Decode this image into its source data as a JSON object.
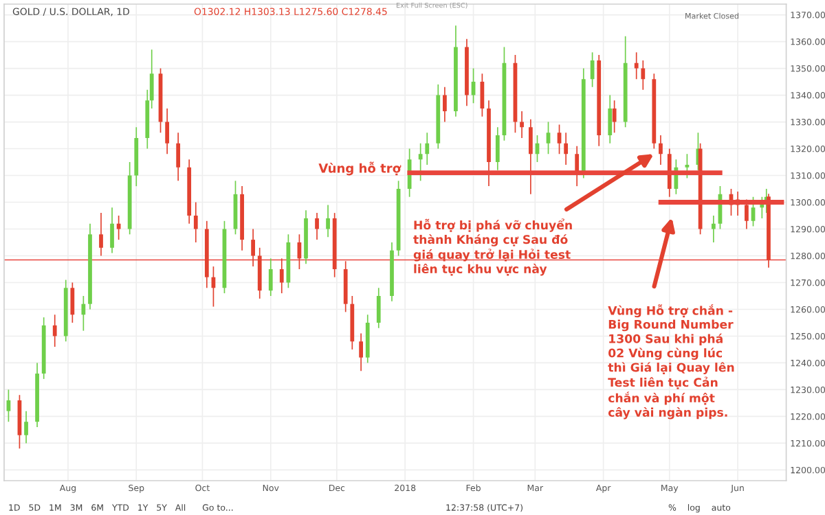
{
  "chart_data": {
    "type": "candlestick",
    "title": "GOLD / U.S. DOLLAR, 1D",
    "series": [
      {
        "x": [
          "2017-07-05",
          "2017-07-10",
          "2017-07-13",
          "2017-07-18",
          "2017-07-21",
          "2017-07-26",
          "2017-07-31",
          "2017-08-03",
          "2017-08-08",
          "2017-08-11",
          "2017-08-16",
          "2017-08-21",
          "2017-08-24",
          "2017-08-29",
          "2017-09-01",
          "2017-09-06",
          "2017-09-08",
          "2017-09-12",
          "2017-09-15",
          "2017-09-20",
          "2017-09-25",
          "2017-09-28",
          "2017-10-03",
          "2017-10-06",
          "2017-10-11",
          "2017-10-16",
          "2017-10-19",
          "2017-10-24",
          "2017-10-27",
          "2017-11-01",
          "2017-11-06",
          "2017-11-09",
          "2017-11-14",
          "2017-11-17",
          "2017-11-22",
          "2017-11-27",
          "2017-11-30",
          "2017-12-05",
          "2017-12-08",
          "2017-12-12",
          "2017-12-15",
          "2017-12-20",
          "2017-12-26",
          "2017-12-29",
          "2018-01-03",
          "2018-01-08",
          "2018-01-11",
          "2018-01-16",
          "2018-01-19",
          "2018-01-24",
          "2018-01-29",
          "2018-02-01",
          "2018-02-05",
          "2018-02-08",
          "2018-02-12",
          "2018-02-15",
          "2018-02-20",
          "2018-02-23",
          "2018-02-27",
          "2018-03-02",
          "2018-03-07",
          "2018-03-12",
          "2018-03-15",
          "2018-03-20",
          "2018-03-23",
          "2018-03-27",
          "2018-03-30",
          "2018-04-04",
          "2018-04-06",
          "2018-04-11",
          "2018-04-16",
          "2018-04-19",
          "2018-04-24",
          "2018-04-27",
          "2018-05-01",
          "2018-05-04",
          "2018-05-09",
          "2018-05-14",
          "2018-05-15",
          "2018-05-21",
          "2018-05-24",
          "2018-05-29",
          "2018-06-01",
          "2018-06-05",
          "2018-06-08",
          "2018-06-12",
          "2018-06-14",
          "2018-06-15"
        ],
        "ohlc": [
          [
            1222,
            1230,
            1218,
            1226
          ],
          [
            1226,
            1228,
            1208,
            1213
          ],
          [
            1213,
            1222,
            1210,
            1218
          ],
          [
            1218,
            1240,
            1216,
            1236
          ],
          [
            1236,
            1257,
            1234,
            1254
          ],
          [
            1254,
            1258,
            1246,
            1250
          ],
          [
            1250,
            1271,
            1248,
            1268
          ],
          [
            1268,
            1270,
            1255,
            1258
          ],
          [
            1258,
            1265,
            1252,
            1262
          ],
          [
            1262,
            1292,
            1260,
            1288
          ],
          [
            1288,
            1296,
            1280,
            1283
          ],
          [
            1283,
            1298,
            1281,
            1292
          ],
          [
            1292,
            1295,
            1286,
            1290
          ],
          [
            1290,
            1315,
            1288,
            1310
          ],
          [
            1310,
            1328,
            1306,
            1324
          ],
          [
            1324,
            1342,
            1320,
            1338
          ],
          [
            1338,
            1357,
            1335,
            1348
          ],
          [
            1348,
            1350,
            1326,
            1330
          ],
          [
            1330,
            1335,
            1318,
            1322
          ],
          [
            1322,
            1326,
            1308,
            1313
          ],
          [
            1313,
            1316,
            1292,
            1295
          ],
          [
            1295,
            1300,
            1285,
            1290
          ],
          [
            1290,
            1293,
            1268,
            1272
          ],
          [
            1272,
            1276,
            1261,
            1268
          ],
          [
            1268,
            1293,
            1266,
            1290
          ],
          [
            1290,
            1308,
            1288,
            1303
          ],
          [
            1303,
            1306,
            1282,
            1286
          ],
          [
            1286,
            1290,
            1276,
            1280
          ],
          [
            1280,
            1283,
            1264,
            1267
          ],
          [
            1267,
            1279,
            1265,
            1275
          ],
          [
            1275,
            1279,
            1266,
            1270
          ],
          [
            1270,
            1288,
            1268,
            1285
          ],
          [
            1285,
            1288,
            1275,
            1279
          ],
          [
            1279,
            1297,
            1277,
            1294
          ],
          [
            1294,
            1296,
            1286,
            1290
          ],
          [
            1290,
            1299,
            1287,
            1294
          ],
          [
            1294,
            1296,
            1272,
            1275
          ],
          [
            1275,
            1278,
            1259,
            1262
          ],
          [
            1262,
            1265,
            1245,
            1248
          ],
          [
            1248,
            1251,
            1237,
            1242
          ],
          [
            1242,
            1258,
            1240,
            1255
          ],
          [
            1255,
            1268,
            1253,
            1265
          ],
          [
            1265,
            1285,
            1263,
            1282
          ],
          [
            1282,
            1308,
            1280,
            1305
          ],
          [
            1305,
            1320,
            1302,
            1316
          ],
          [
            1316,
            1322,
            1308,
            1318
          ],
          [
            1318,
            1326,
            1314,
            1322
          ],
          [
            1322,
            1344,
            1320,
            1340
          ],
          [
            1340,
            1343,
            1330,
            1334
          ],
          [
            1334,
            1366,
            1332,
            1358
          ],
          [
            1358,
            1361,
            1336,
            1340
          ],
          [
            1340,
            1350,
            1337,
            1345
          ],
          [
            1345,
            1348,
            1332,
            1335
          ],
          [
            1335,
            1338,
            1306,
            1315
          ],
          [
            1315,
            1328,
            1312,
            1325
          ],
          [
            1325,
            1358,
            1323,
            1352
          ],
          [
            1352,
            1355,
            1326,
            1330
          ],
          [
            1330,
            1334,
            1324,
            1328
          ],
          [
            1328,
            1331,
            1303,
            1318
          ],
          [
            1318,
            1325,
            1315,
            1322
          ],
          [
            1322,
            1330,
            1318,
            1326
          ],
          [
            1326,
            1329,
            1318,
            1322
          ],
          [
            1322,
            1326,
            1314,
            1318
          ],
          [
            1318,
            1321,
            1306,
            1311
          ],
          [
            1311,
            1350,
            1309,
            1346
          ],
          [
            1346,
            1356,
            1343,
            1353
          ],
          [
            1353,
            1355,
            1321,
            1325
          ],
          [
            1325,
            1340,
            1322,
            1335
          ],
          [
            1335,
            1338,
            1326,
            1330
          ],
          [
            1330,
            1362,
            1328,
            1352
          ],
          [
            1352,
            1356,
            1346,
            1350
          ],
          [
            1350,
            1353,
            1342,
            1346
          ],
          [
            1346,
            1348,
            1320,
            1322
          ],
          [
            1322,
            1325,
            1314,
            1318
          ],
          [
            1318,
            1320,
            1302,
            1305
          ],
          [
            1305,
            1316,
            1303,
            1313
          ],
          [
            1313,
            1318,
            1309,
            1314
          ],
          [
            1314,
            1326,
            1312,
            1320
          ],
          [
            1320,
            1322,
            1288,
            1290
          ],
          [
            1290,
            1295,
            1285,
            1292
          ],
          [
            1292,
            1306,
            1290,
            1303
          ],
          [
            1303,
            1305,
            1295,
            1299
          ],
          [
            1301,
            1304,
            1295,
            1299
          ],
          [
            1299,
            1301,
            1290,
            1293
          ],
          [
            1293,
            1302,
            1291,
            1298
          ],
          [
            1298,
            1302,
            1294,
            1300
          ],
          [
            1300,
            1305,
            1296,
            1302
          ],
          [
            1302.12,
            1303.13,
            1275.6,
            1278.45
          ]
        ],
        "colors": [
          "#6fcf4a",
          "#e2412f",
          "#6fcf4a",
          "#6fcf4a",
          "#6fcf4a",
          "#e2412f",
          "#6fcf4a",
          "#e2412f",
          "#6fcf4a",
          "#6fcf4a",
          "#e2412f",
          "#6fcf4a",
          "#e2412f",
          "#6fcf4a",
          "#6fcf4a",
          "#6fcf4a",
          "#6fcf4a",
          "#e2412f",
          "#e2412f",
          "#e2412f",
          "#e2412f",
          "#e2412f",
          "#e2412f",
          "#e2412f",
          "#6fcf4a",
          "#6fcf4a",
          "#e2412f",
          "#e2412f",
          "#e2412f",
          "#6fcf4a",
          "#e2412f",
          "#6fcf4a",
          "#e2412f",
          "#6fcf4a",
          "#e2412f",
          "#6fcf4a",
          "#e2412f",
          "#e2412f",
          "#e2412f",
          "#e2412f",
          "#6fcf4a",
          "#6fcf4a",
          "#6fcf4a",
          "#6fcf4a",
          "#6fcf4a",
          "#6fcf4a",
          "#6fcf4a",
          "#6fcf4a",
          "#e2412f",
          "#6fcf4a",
          "#e2412f",
          "#6fcf4a",
          "#e2412f",
          "#e2412f",
          "#6fcf4a",
          "#6fcf4a",
          "#e2412f",
          "#e2412f",
          "#e2412f",
          "#6fcf4a",
          "#6fcf4a",
          "#e2412f",
          "#e2412f",
          "#e2412f",
          "#6fcf4a",
          "#6fcf4a",
          "#e2412f",
          "#6fcf4a",
          "#e2412f",
          "#6fcf4a",
          "#e2412f",
          "#e2412f",
          "#e2412f",
          "#e2412f",
          "#e2412f",
          "#6fcf4a",
          "#6fcf4a",
          "#6fcf4a",
          "#e2412f",
          "#6fcf4a",
          "#6fcf4a",
          "#e2412f",
          "#e2412f",
          "#e2412f",
          "#6fcf4a",
          "#6fcf4a",
          "#6fcf4a",
          "#e2412f"
        ]
      },
      {
        "type": "line",
        "color": "#e8453c",
        "x": [
          "2018-01-02",
          "2018-05-25"
        ],
        "values": [
          1311,
          1311
        ]
      },
      {
        "type": "line",
        "color": "#e8453c",
        "x": [
          "2018-04-26",
          "2018-06-22"
        ],
        "values": [
          1300,
          1300
        ]
      }
    ],
    "ref_lines": [
      {
        "axis": "y",
        "value": 1278.45,
        "color": "#e8453c"
      }
    ],
    "annotations": [
      "O1302.12 H1303.13 L1275.60 C1278.45",
      "Vùng hỗ trợ",
      "Hỗ trợ bị phá vỡ chuyển\nthành Kháng cự Sau đó\ngiá quay trở lại Hỏi test\nliên tục khu vực này",
      "Vùng Hỗ trợ chắn -\nBig Round Number\n1300 Sau khi phá\n02 Vùng cùng lúc\nthì Giá lại Quay lên\nTest liên tục Cản\nchắn và phí một\ncây vài ngàn pips.",
      "Market Closed",
      "Exit Full Screen (ESC)",
      "1D   5D   1M   3M   6M   YTD   1Y   5Y   All      Go to...",
      "12:37:58 (UTC+7)",
      "%    log    auto"
    ],
    "xlim": [
      "2017-07-03",
      "2018-06-23"
    ],
    "xticks": [
      {
        "value": "2017-08-01",
        "label": "Aug"
      },
      {
        "value": "2017-09-01",
        "label": "Sep"
      },
      {
        "value": "2017-10-01",
        "label": "Oct"
      },
      {
        "value": "2017-11-01",
        "label": "Nov"
      },
      {
        "value": "2017-12-01",
        "label": "Dec"
      },
      {
        "value": "2018-01-01",
        "label": "2018"
      },
      {
        "value": "2018-02-01",
        "label": "Feb"
      },
      {
        "value": "2018-03-01",
        "label": "Mar"
      },
      {
        "value": "2018-04-01",
        "label": "Apr"
      },
      {
        "value": "2018-05-01",
        "label": "May"
      },
      {
        "value": "2018-06-01",
        "label": "Jun"
      }
    ],
    "ylim": [
      1196,
      1374
    ],
    "yticks": [
      {
        "value": 1200,
        "label": "1200.00"
      },
      {
        "value": 1210,
        "label": "1210.00"
      },
      {
        "value": 1220,
        "label": "1220.00"
      },
      {
        "value": 1230,
        "label": "1230.00"
      },
      {
        "value": 1240,
        "label": "1240.00"
      },
      {
        "value": 1250,
        "label": "1250.00"
      },
      {
        "value": 1260,
        "label": "1260.00"
      },
      {
        "value": 1270,
        "label": "1270.00"
      },
      {
        "value": 1280,
        "label": "1280.00"
      },
      {
        "value": 1290,
        "label": "1290.00"
      },
      {
        "value": 1300,
        "label": "1300.00"
      },
      {
        "value": 1310,
        "label": "1310.00"
      },
      {
        "value": 1320,
        "label": "1320.00"
      },
      {
        "value": 1330,
        "label": "1330.00"
      },
      {
        "value": 1340,
        "label": "1340.00"
      },
      {
        "value": 1350,
        "label": "1350.00"
      },
      {
        "value": 1360,
        "label": "1360.00"
      },
      {
        "value": 1370,
        "label": "1370.00"
      }
    ],
    "grid": true
  }
}
